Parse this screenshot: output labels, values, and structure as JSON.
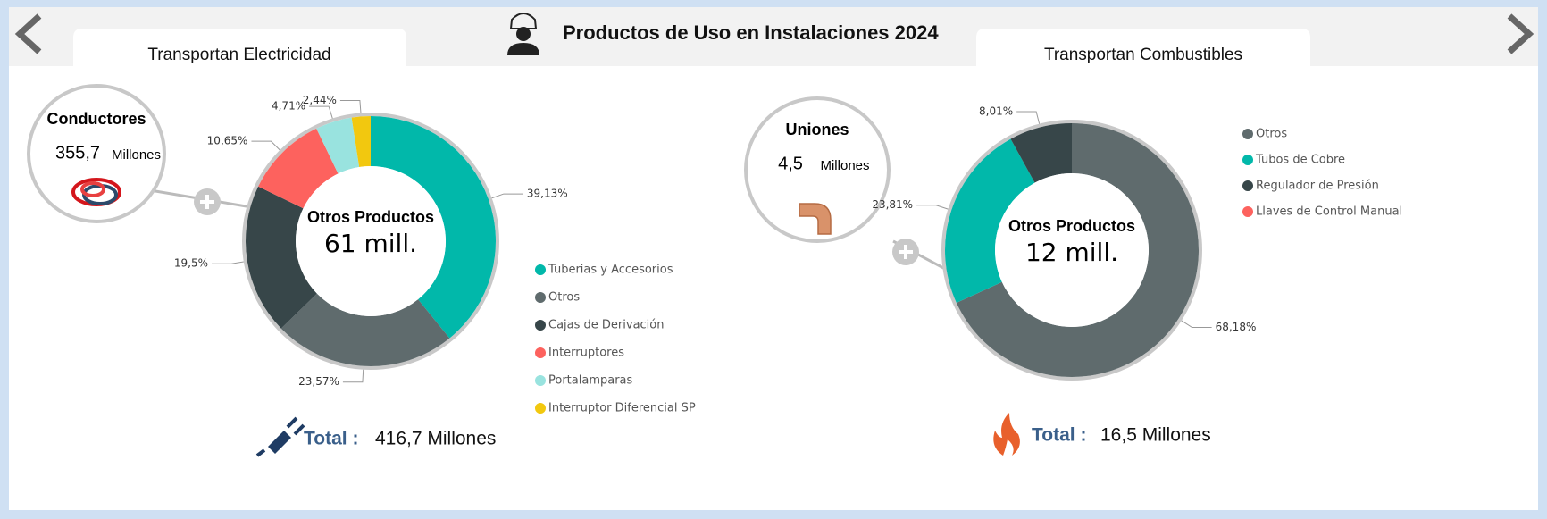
{
  "header": {
    "title": "Productos de Uso en Instalaciones 2024"
  },
  "panels": [
    {
      "tab": "Transportan Electricidad",
      "card": {
        "title": "Conductores",
        "value": "355,7",
        "unit": "Millones"
      },
      "total": {
        "label": "Total :",
        "value": "416,7 Millones"
      }
    },
    {
      "tab": "Transportan Combustibles",
      "card": {
        "title": "Uniones",
        "value": "4,5",
        "unit": "Millones"
      },
      "total": {
        "label": "Total :",
        "value": "16,5 Millones"
      }
    }
  ],
  "chart_data": [
    {
      "type": "donut",
      "center_title": "Otros Productos",
      "center_value": "61 mill.",
      "categories": [
        "Tuberias y Accesorios",
        "Otros",
        "Cajas de Derivación",
        "Interruptores",
        "Portalamparas",
        "Interruptor Diferencial SP"
      ],
      "values": [
        39.13,
        23.57,
        19.5,
        10.65,
        4.71,
        2.44
      ],
      "value_labels": [
        "39,13%",
        "23,57%",
        "19,5%",
        "10,65%",
        "4,71%",
        "2,44%"
      ],
      "colors": [
        "#01b8aa",
        "#5f6b6d",
        "#374649",
        "#fd625e",
        "#99e3df",
        "#f2c80f"
      ]
    },
    {
      "type": "donut",
      "center_title": "Otros Productos",
      "center_value": "12 mill.",
      "categories": [
        "Otros",
        "Tubos de Cobre",
        "Regulador de Presión",
        "Llaves de Control Manual"
      ],
      "values": [
        68.18,
        23.81,
        8.01,
        0
      ],
      "value_labels": [
        "68,18%",
        "23,81%",
        "8,01%",
        null
      ],
      "colors": [
        "#5f6b6d",
        "#01b8aa",
        "#374649",
        "#fd625e"
      ]
    }
  ]
}
